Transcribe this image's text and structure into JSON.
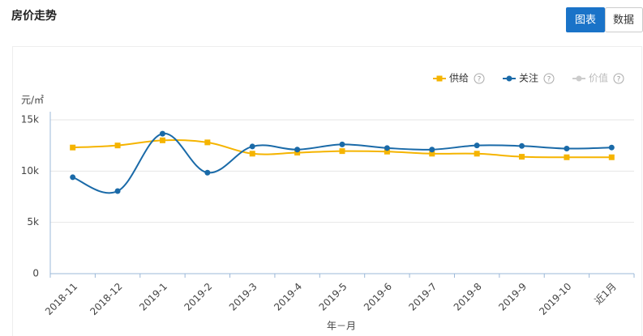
{
  "header": {
    "title": "房价走势",
    "buttons": [
      "图表",
      "数据"
    ]
  },
  "chart_data": {
    "type": "line",
    "ylabel": "元/㎡",
    "xlabel": "年－月",
    "categories": [
      "2018-11",
      "2018-12",
      "2019-1",
      "2019-2",
      "2019-3",
      "2019-4",
      "2019-5",
      "2019-6",
      "2019-7",
      "2019-8",
      "2019-9",
      "2019-10",
      "近1月"
    ],
    "series": [
      {
        "name": "供给",
        "color": "#f5b400",
        "marker": "square",
        "values": [
          12300,
          12500,
          13000,
          12800,
          11700,
          11800,
          11950,
          11900,
          11700,
          11700,
          11400,
          11350,
          11350
        ]
      },
      {
        "name": "关注",
        "color": "#1a6aa8",
        "marker": "circle",
        "values": [
          9400,
          8050,
          13650,
          9850,
          12400,
          12100,
          12600,
          12250,
          12100,
          12500,
          12450,
          12200,
          12300
        ]
      },
      {
        "name": "价值",
        "color": "#cccccc",
        "marker": "circle",
        "values": [
          null,
          null,
          null,
          null,
          null,
          null,
          null,
          null,
          null,
          null,
          null,
          null,
          null
        ]
      }
    ],
    "ylim": [
      0,
      15000
    ],
    "yticks": [
      0,
      {
        "value": 5000,
        "label": "5k"
      },
      {
        "value": 10000,
        "label": "10k"
      },
      {
        "value": 15000,
        "label": "15k"
      }
    ],
    "grid": true,
    "legend": "top-right"
  }
}
